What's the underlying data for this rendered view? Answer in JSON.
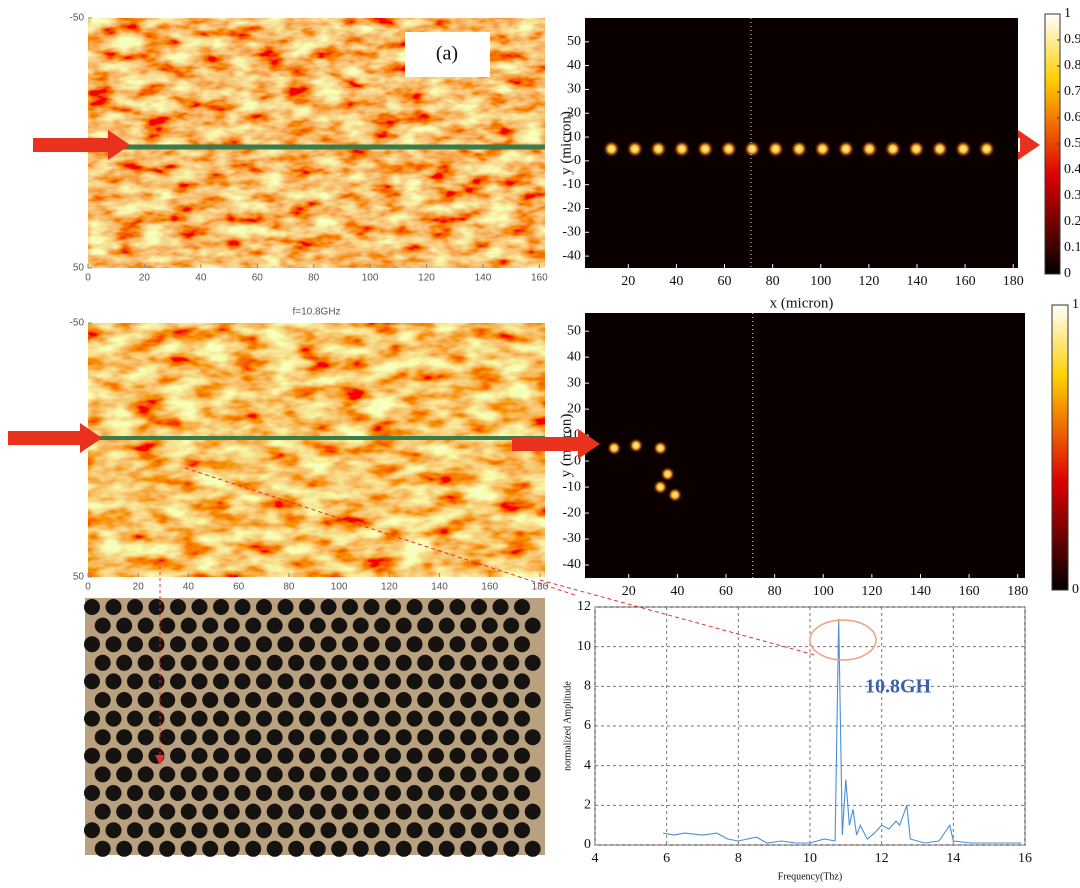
{
  "chart_data": [
    {
      "type": "heatmap",
      "annotation": "(a)",
      "xlim": [
        0,
        162
      ],
      "ylim": [
        -50,
        50
      ],
      "y_inverted": true,
      "xticks": [
        0,
        20,
        40,
        60,
        80,
        100,
        120,
        140,
        160
      ],
      "yticks": [
        -50,
        50
      ]
    },
    {
      "type": "heatmap",
      "xlabel": "x (micron)",
      "ylabel": "y (micron)",
      "xlim": [
        2,
        182
      ],
      "ylim": [
        -45,
        60
      ],
      "xticks": [
        20,
        40,
        60,
        80,
        100,
        120,
        140,
        160,
        180
      ],
      "yticks": [
        -40,
        -30,
        -20,
        -10,
        0,
        10,
        20,
        30,
        40,
        50
      ],
      "colorbar_lim": [
        0,
        1
      ],
      "colorbar_ticks": [
        0,
        0.1,
        0.2,
        0.3,
        0.4,
        0.5,
        0.6,
        0.7,
        0.8,
        0.9,
        1
      ]
    },
    {
      "type": "heatmap",
      "title": "f=10.8GHz",
      "xlim": [
        0,
        182
      ],
      "ylim": [
        -50,
        50
      ],
      "y_inverted": true,
      "xticks": [
        0,
        20,
        40,
        60,
        80,
        100,
        120,
        140,
        160,
        180
      ],
      "yticks": [
        -50,
        50
      ]
    },
    {
      "type": "heatmap",
      "ylabel": "y (micron)",
      "xlim": [
        2,
        183
      ],
      "ylim": [
        -45,
        57
      ],
      "xticks": [
        20,
        40,
        60,
        80,
        100,
        120,
        140,
        160,
        180
      ],
      "yticks": [
        -40,
        -30,
        -20,
        -10,
        0,
        10,
        20,
        30,
        40,
        50
      ],
      "colorbar_lim": [
        0,
        1
      ],
      "colorbar_ticks": [
        0,
        1
      ]
    },
    {
      "type": "line",
      "xlabel": "Frequency(Thz)",
      "ylabel": "normalized Amplitude",
      "annotation": "10.8GH",
      "xlim": [
        4,
        16
      ],
      "ylim": [
        0,
        12
      ],
      "xticks": [
        4,
        6,
        8,
        10,
        12,
        14,
        16
      ],
      "yticks": [
        0,
        2,
        4,
        6,
        8,
        10,
        12
      ],
      "grid": true,
      "series": [
        {
          "color": "#4a8fd6",
          "x": [
            5.9,
            6.2,
            6.5,
            7.0,
            7.4,
            7.7,
            8.0,
            8.5,
            8.8,
            9.2,
            9.6,
            10.0,
            10.4,
            10.7,
            10.8,
            10.9,
            11.0,
            11.1,
            11.2,
            11.3,
            11.4,
            11.6,
            11.8,
            12.0,
            12.2,
            12.4,
            12.5,
            12.6,
            12.7,
            12.8,
            13.2,
            13.6,
            13.9,
            14.0,
            14.5,
            15.0,
            15.9
          ],
          "values": [
            0.6,
            0.5,
            0.6,
            0.5,
            0.6,
            0.3,
            0.2,
            0.4,
            0.1,
            0.2,
            0.1,
            0.1,
            0.3,
            0.2,
            11.4,
            0.5,
            3.3,
            1.0,
            1.8,
            0.5,
            1.0,
            0.3,
            0.6,
            1.0,
            0.8,
            1.2,
            1.0,
            1.5,
            2.0,
            0.3,
            0.1,
            0.2,
            1.0,
            0.2,
            0.1,
            0.1,
            0.1
          ]
        }
      ]
    }
  ]
}
